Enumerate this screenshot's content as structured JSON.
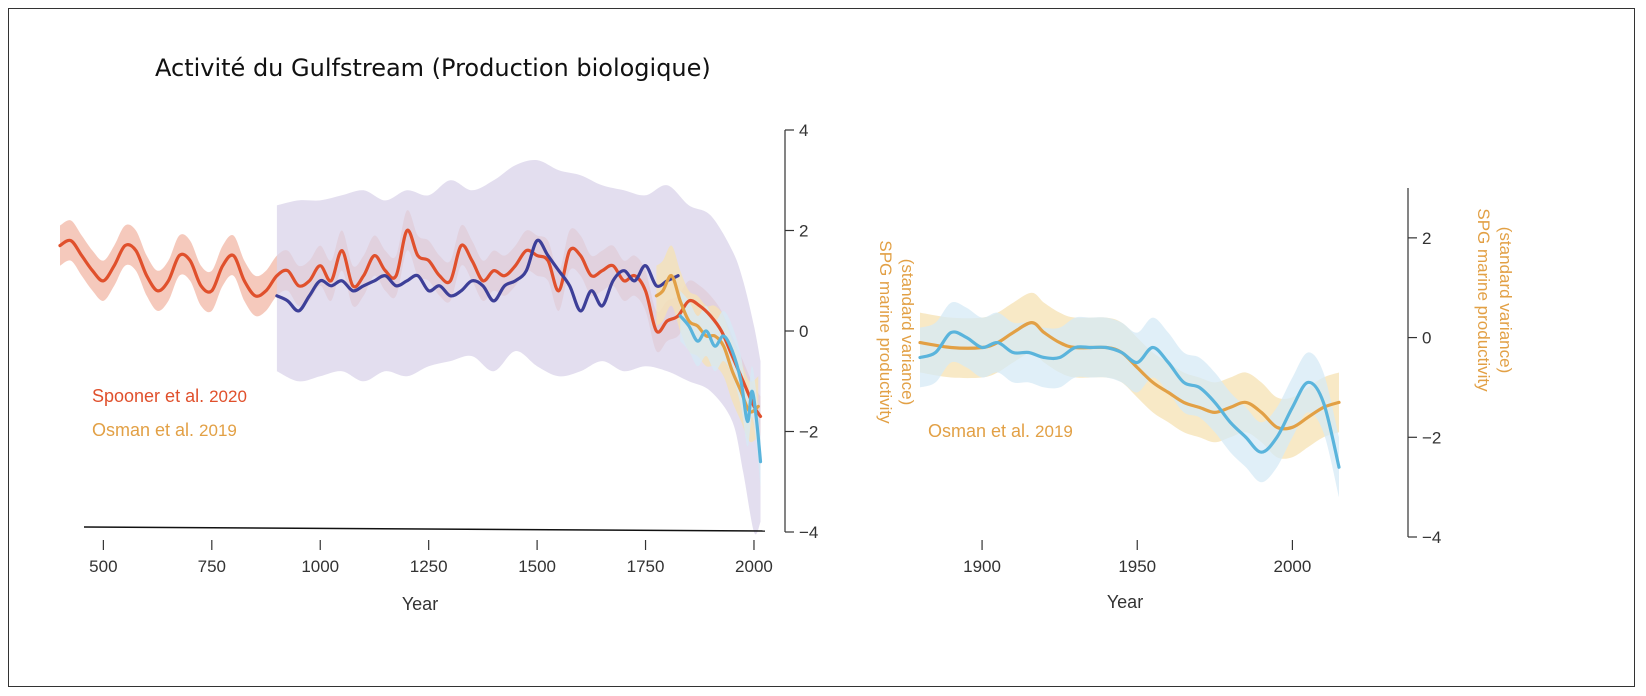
{
  "title": "Activité du Gulfstream (Production biologique)",
  "colors": {
    "spooner": "#e0502c",
    "spooner_band": "#f2b7a6",
    "osman": "#e2a045",
    "osman_band": "#f6e1b3",
    "reconstruction": "#3d3f98",
    "reconstruction_band": "#d9d3ea",
    "cyan": "#5ab4dc",
    "cyan_band": "#d5e9f5",
    "axis": "#333333"
  },
  "chart_data": [
    {
      "type": "line",
      "name": "left-panel",
      "xlabel": "Year",
      "ylabel": "SPG marine productivity\n(standard variance)",
      "xlim": [
        400,
        2060
      ],
      "ylim": [
        -4,
        4
      ],
      "xticks": [
        500,
        750,
        1000,
        1250,
        1500,
        1750,
        2000
      ],
      "yticks": [
        4,
        2,
        0,
        -2,
        -4
      ],
      "yaxis_side": "right",
      "legend": [
        {
          "label": "Spooner et al.",
          "year": "2020",
          "color": "#e0502c"
        },
        {
          "label": "Osman et al.",
          "year": "2019",
          "color": "#e2a045"
        }
      ],
      "legend_position": "bottom-left",
      "series": [
        {
          "name": "Spooner et al. 2020",
          "color": "#e0502c",
          "band_color": "#f2b7a6",
          "band_width": 0.4,
          "x": [
            400,
            425,
            450,
            475,
            500,
            525,
            550,
            575,
            600,
            625,
            650,
            675,
            700,
            725,
            750,
            775,
            800,
            825,
            850,
            875,
            900,
            925,
            950,
            975,
            1000,
            1025,
            1050,
            1075,
            1100,
            1125,
            1150,
            1175,
            1200,
            1225,
            1250,
            1275,
            1300,
            1325,
            1350,
            1375,
            1400,
            1425,
            1450,
            1475,
            1500,
            1525,
            1550,
            1575,
            1600,
            1625,
            1650,
            1675,
            1700,
            1725,
            1750,
            1775,
            1800,
            1825,
            1850,
            1875,
            1900,
            1925,
            1950,
            1975,
            2000,
            2015
          ],
          "y": [
            1.7,
            1.8,
            1.5,
            1.2,
            1.0,
            1.3,
            1.7,
            1.6,
            1.1,
            0.8,
            1.0,
            1.5,
            1.4,
            0.9,
            0.8,
            1.3,
            1.5,
            1.0,
            0.7,
            0.8,
            1.1,
            1.2,
            0.9,
            1.0,
            1.3,
            1.0,
            1.6,
            0.9,
            1.1,
            1.5,
            1.2,
            1.1,
            2.0,
            1.5,
            1.4,
            1.1,
            1.0,
            1.7,
            1.4,
            1.0,
            1.2,
            1.1,
            1.3,
            1.6,
            1.5,
            1.4,
            0.8,
            1.6,
            1.5,
            1.1,
            1.2,
            1.3,
            1.0,
            1.1,
            0.8,
            0.0,
            0.2,
            0.3,
            0.6,
            0.5,
            0.3,
            0.0,
            -0.5,
            -1.0,
            -1.5,
            -1.7
          ]
        },
        {
          "name": "reconstruction",
          "color": "#3d3f98",
          "band_color": "#d9d3ea",
          "band": {
            "x": [
              900,
              950,
              1000,
              1050,
              1100,
              1150,
              1200,
              1250,
              1300,
              1350,
              1400,
              1450,
              1500,
              1550,
              1600,
              1650,
              1700,
              1750,
              1800,
              1850,
              1900,
              1950,
              1975,
              2000,
              2015
            ],
            "upper": [
              2.5,
              2.6,
              2.6,
              2.7,
              2.8,
              2.6,
              2.8,
              2.7,
              3.0,
              2.8,
              3.0,
              3.3,
              3.4,
              3.2,
              3.1,
              2.9,
              2.8,
              2.7,
              2.9,
              2.5,
              2.3,
              1.6,
              1.0,
              0.1,
              -0.6
            ],
            "lower": [
              -0.8,
              -1.0,
              -0.9,
              -0.8,
              -1.0,
              -0.8,
              -0.9,
              -0.7,
              -0.6,
              -0.5,
              -0.8,
              -0.4,
              -0.7,
              -0.9,
              -0.8,
              -0.6,
              -0.8,
              -0.7,
              -0.8,
              -1.0,
              -1.2,
              -1.8,
              -2.8,
              -4.0,
              -3.8
            ]
          },
          "x": [
            900,
            925,
            950,
            975,
            1000,
            1025,
            1050,
            1075,
            1100,
            1125,
            1150,
            1175,
            1200,
            1225,
            1250,
            1275,
            1300,
            1325,
            1350,
            1375,
            1400,
            1425,
            1450,
            1475,
            1500,
            1525,
            1550,
            1575,
            1600,
            1625,
            1650,
            1675,
            1700,
            1725,
            1750,
            1775,
            1800,
            1825
          ],
          "y": [
            0.7,
            0.6,
            0.4,
            0.7,
            1.0,
            0.9,
            1.0,
            0.8,
            0.9,
            1.0,
            1.1,
            0.9,
            1.0,
            1.1,
            0.8,
            0.9,
            0.7,
            0.8,
            1.0,
            0.9,
            0.6,
            0.9,
            1.0,
            1.2,
            1.8,
            1.5,
            1.2,
            0.9,
            0.4,
            0.8,
            0.5,
            1.0,
            1.2,
            1.0,
            1.3,
            0.9,
            1.0,
            1.1
          ]
        },
        {
          "name": "Osman et al. 2019",
          "color": "#e2a045",
          "band_color": "#f6e1b3",
          "band_width": 0.6,
          "x": [
            1775,
            1790,
            1810,
            1830,
            1850,
            1870,
            1890,
            1910,
            1930,
            1950,
            1970,
            1990,
            2010
          ],
          "y": [
            0.7,
            0.8,
            1.1,
            0.6,
            0.2,
            0.1,
            -0.1,
            -0.1,
            -0.3,
            -0.8,
            -1.2,
            -1.6,
            -1.5
          ]
        },
        {
          "name": "cyan",
          "color": "#5ab4dc",
          "band_color": "#d5e9f5",
          "band_width": 0.5,
          "x": [
            1830,
            1850,
            1870,
            1890,
            1910,
            1930,
            1950,
            1970,
            1985,
            1995,
            2005,
            2015
          ],
          "y": [
            0.3,
            0.1,
            -0.2,
            0.0,
            -0.3,
            -0.1,
            -0.4,
            -1.0,
            -1.8,
            -1.2,
            -1.7,
            -2.6
          ]
        }
      ]
    },
    {
      "type": "line",
      "name": "right-panel",
      "xlabel": "Year",
      "ylabel": "SPG marine productivity\n(standard variance)",
      "xlim": [
        1880,
        2025
      ],
      "ylim": [
        -4,
        3
      ],
      "xticks": [
        1900,
        1950,
        2000
      ],
      "yticks": [
        2,
        0,
        -2,
        -4
      ],
      "yaxis_side": "right",
      "legend": [
        {
          "label": "Osman et al.",
          "year": "2019",
          "color": "#e2a045"
        }
      ],
      "legend_position": "bottom-left",
      "series": [
        {
          "name": "Osman et al. 2019",
          "color": "#e2a045",
          "band_color": "#f6e1b3",
          "band_width": 0.6,
          "x": [
            1880,
            1890,
            1900,
            1905,
            1910,
            1916,
            1920,
            1925,
            1930,
            1940,
            1945,
            1950,
            1955,
            1960,
            1965,
            1970,
            1975,
            1980,
            1985,
            1990,
            1995,
            2000,
            2005,
            2010,
            2015
          ],
          "y": [
            -0.1,
            -0.2,
            -0.2,
            -0.1,
            0.1,
            0.3,
            0.1,
            -0.1,
            -0.2,
            -0.2,
            -0.3,
            -0.6,
            -0.9,
            -1.1,
            -1.3,
            -1.4,
            -1.5,
            -1.4,
            -1.3,
            -1.5,
            -1.8,
            -1.8,
            -1.6,
            -1.4,
            -1.3
          ]
        },
        {
          "name": "cyan",
          "color": "#5ab4dc",
          "band_color": "#d5e9f5",
          "band_width": 0.6,
          "x": [
            1880,
            1885,
            1890,
            1895,
            1900,
            1905,
            1910,
            1915,
            1920,
            1925,
            1930,
            1935,
            1940,
            1945,
            1950,
            1955,
            1960,
            1965,
            1970,
            1975,
            1980,
            1985,
            1990,
            1995,
            2000,
            2005,
            2010,
            2015
          ],
          "y": [
            -0.4,
            -0.3,
            0.1,
            0.0,
            -0.2,
            -0.1,
            -0.3,
            -0.3,
            -0.4,
            -0.4,
            -0.2,
            -0.2,
            -0.2,
            -0.3,
            -0.5,
            -0.2,
            -0.5,
            -0.9,
            -1.0,
            -1.3,
            -1.7,
            -2.0,
            -2.3,
            -2.0,
            -1.4,
            -0.9,
            -1.3,
            -2.6
          ]
        }
      ]
    }
  ]
}
